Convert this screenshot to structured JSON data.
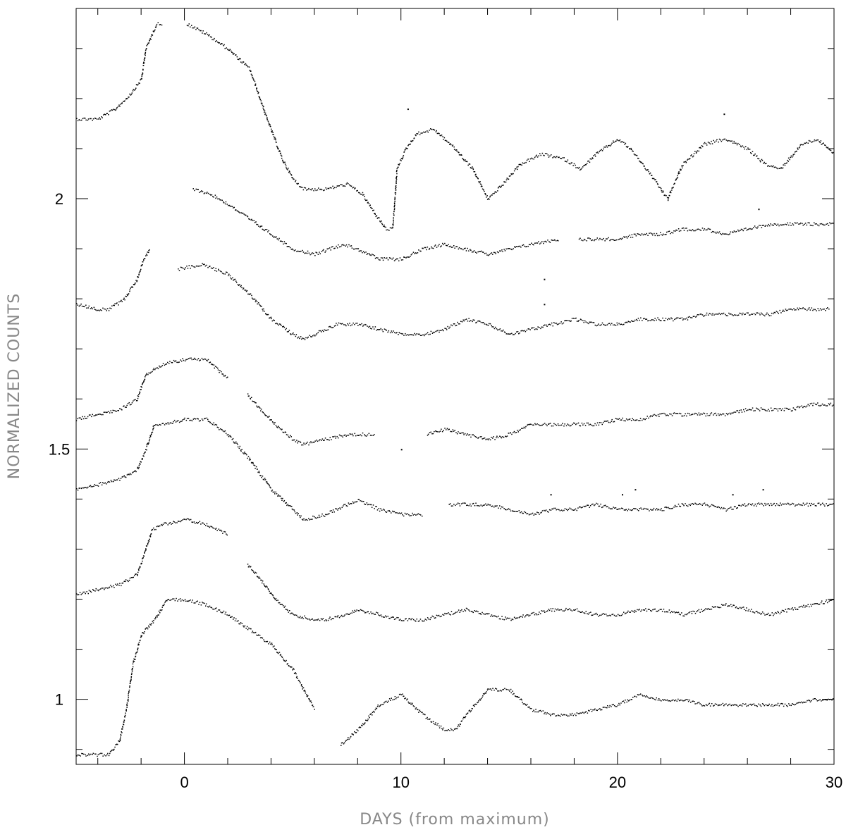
{
  "chart_data": {
    "type": "scatter",
    "title": "",
    "xlabel": "DAYS (from maximum)",
    "ylabel": "NORMALIZED COUNTS",
    "xlim": [
      -5,
      30
    ],
    "ylim": [
      0.87,
      2.38
    ],
    "x_ticks": [
      0,
      10,
      20,
      30
    ],
    "x_tick_labels": [
      "0",
      "10",
      "20",
      "30"
    ],
    "y_ticks": [
      1,
      1.5,
      2
    ],
    "y_tick_labels": [
      "1",
      "1.5",
      "2"
    ],
    "grid": false,
    "legend": "none",
    "marker_color": "#000000",
    "series": [
      {
        "x": [
          -5,
          -4,
          -3.2,
          -2.5,
          -2,
          -1.8,
          -1.3,
          -1,
          null,
          0.1,
          1,
          2,
          3,
          3.8,
          4.5,
          5,
          5.5,
          6.5,
          7.5,
          8.2,
          8.8,
          9.3,
          9.6,
          9.8,
          10.2,
          10.7,
          11.5,
          12.5,
          13.3,
          14,
          14.7,
          15.5,
          16.5,
          17.5,
          18.3,
          19,
          20,
          20.6,
          21.5,
          22.3,
          23,
          24,
          25,
          26,
          26.8,
          27.5,
          28.5,
          29.2,
          30
        ],
        "y": [
          2.16,
          2.16,
          2.18,
          2.21,
          2.24,
          2.3,
          2.35,
          2.35,
          null,
          2.35,
          2.33,
          2.3,
          2.26,
          2.16,
          2.08,
          2.04,
          2.02,
          2.02,
          2.03,
          2.01,
          1.97,
          1.94,
          1.94,
          2.06,
          2.1,
          2.13,
          2.14,
          2.1,
          2.06,
          2.0,
          2.03,
          2.07,
          2.09,
          2.08,
          2.06,
          2.09,
          2.12,
          2.1,
          2.05,
          2.0,
          2.07,
          2.11,
          2.12,
          2.1,
          2.07,
          2.06,
          2.11,
          2.12,
          2.09
        ]
      },
      {
        "x": [
          0.4,
          1.2,
          2,
          3,
          4,
          5,
          6,
          7.3,
          8,
          9,
          10,
          11,
          12,
          13,
          14,
          15,
          16,
          17.3,
          null,
          18.2,
          19,
          20,
          21,
          22,
          23,
          24,
          25,
          26,
          27,
          28,
          29,
          30
        ],
        "y": [
          2.02,
          2.01,
          1.99,
          1.96,
          1.93,
          1.9,
          1.89,
          1.91,
          1.9,
          1.88,
          1.88,
          1.9,
          1.91,
          1.9,
          1.89,
          1.9,
          1.91,
          1.92,
          null,
          1.92,
          1.92,
          1.92,
          1.93,
          1.93,
          1.94,
          1.94,
          1.93,
          1.94,
          1.95,
          1.95,
          1.95,
          1.95
        ]
      },
      {
        "x": [
          -5,
          -4,
          -3.5,
          -2.8,
          -2.2,
          -1.9,
          -1.6,
          null,
          -0.3,
          0.8,
          2,
          3,
          4,
          5,
          5.5,
          7,
          8,
          9,
          10,
          11,
          12,
          13,
          14,
          15,
          16,
          17,
          18,
          19,
          20,
          21,
          22,
          23,
          24,
          25,
          26,
          27,
          28,
          29,
          29.8
        ],
        "y": [
          1.79,
          1.78,
          1.78,
          1.8,
          1.84,
          1.88,
          1.9,
          null,
          1.86,
          1.87,
          1.85,
          1.81,
          1.76,
          1.73,
          1.72,
          1.75,
          1.75,
          1.74,
          1.73,
          1.73,
          1.74,
          1.76,
          1.75,
          1.73,
          1.74,
          1.75,
          1.76,
          1.75,
          1.75,
          1.76,
          1.76,
          1.76,
          1.77,
          1.77,
          1.77,
          1.77,
          1.78,
          1.78,
          1.78
        ]
      },
      {
        "x": [
          -5,
          -4,
          -3,
          -2.2,
          -1.8,
          -1,
          0,
          1,
          1.5,
          2
        ],
        "y": [
          1.56,
          1.57,
          1.58,
          1.6,
          1.65,
          1.67,
          1.68,
          1.68,
          1.66,
          1.64
        ]
      },
      {
        "x": [
          2.9,
          3.5,
          4.2,
          5,
          5.5,
          6.5,
          7.5,
          8.5,
          8.8,
          null,
          11.2,
          12,
          13,
          14,
          15,
          16,
          17,
          18,
          19,
          20,
          21,
          22,
          23,
          24,
          25,
          26,
          27,
          28,
          29,
          30
        ],
        "y": [
          1.61,
          1.58,
          1.55,
          1.52,
          1.51,
          1.52,
          1.53,
          1.53,
          1.53,
          null,
          1.53,
          1.54,
          1.53,
          1.52,
          1.53,
          1.55,
          1.55,
          1.55,
          1.55,
          1.56,
          1.56,
          1.57,
          1.57,
          1.57,
          1.57,
          1.58,
          1.58,
          1.58,
          1.59,
          1.59
        ]
      },
      {
        "x": [
          -5,
          -4,
          -3,
          -2.2,
          -1.8,
          -1.4,
          -1,
          0,
          1,
          2,
          3,
          4,
          5,
          5.5,
          6.5,
          7.5,
          8,
          9,
          10,
          11
        ],
        "y": [
          1.42,
          1.43,
          1.44,
          1.46,
          1.5,
          1.55,
          1.55,
          1.56,
          1.56,
          1.53,
          1.48,
          1.42,
          1.38,
          1.36,
          1.37,
          1.39,
          1.4,
          1.38,
          1.37,
          1.37
        ]
      },
      {
        "x": [
          12.2,
          13,
          14,
          15,
          16,
          17,
          18,
          19,
          20,
          21,
          22,
          23,
          24,
          25,
          26,
          27,
          28,
          29,
          30
        ],
        "y": [
          1.39,
          1.39,
          1.39,
          1.38,
          1.37,
          1.38,
          1.38,
          1.39,
          1.38,
          1.38,
          1.38,
          1.39,
          1.39,
          1.38,
          1.39,
          1.39,
          1.39,
          1.39,
          1.39
        ]
      },
      {
        "x": [
          -5,
          -4,
          -3,
          -2.2,
          -1.8,
          -1.5,
          -1,
          0,
          1,
          2
        ],
        "y": [
          1.21,
          1.22,
          1.23,
          1.25,
          1.3,
          1.34,
          1.35,
          1.36,
          1.35,
          1.33
        ]
      },
      {
        "x": [
          2.9,
          3.5,
          4.2,
          5,
          6,
          6.5,
          7.5,
          8,
          9,
          10,
          11,
          12,
          13,
          14,
          15,
          16,
          17,
          18,
          19,
          20,
          21,
          22,
          23,
          24,
          25,
          26,
          27,
          28,
          29,
          30
        ],
        "y": [
          1.27,
          1.24,
          1.2,
          1.17,
          1.16,
          1.16,
          1.17,
          1.18,
          1.17,
          1.16,
          1.16,
          1.17,
          1.18,
          1.17,
          1.16,
          1.17,
          1.18,
          1.18,
          1.17,
          1.17,
          1.18,
          1.18,
          1.17,
          1.18,
          1.19,
          1.18,
          1.17,
          1.18,
          1.19,
          1.2
        ]
      },
      {
        "x": [
          -5,
          -4,
          -3.5,
          -3,
          -2.7,
          -2.4,
          -2,
          -1.4,
          -0.8,
          0,
          1,
          2,
          3,
          4,
          5,
          6,
          null,
          7.2,
          8,
          9,
          10,
          11,
          12,
          12.5,
          13,
          14,
          15,
          16,
          17,
          18,
          19,
          20,
          21,
          22,
          23,
          24,
          25,
          26,
          27,
          28,
          29,
          30
        ],
        "y": [
          0.89,
          0.89,
          0.89,
          0.92,
          0.98,
          1.07,
          1.13,
          1.16,
          1.2,
          1.2,
          1.19,
          1.17,
          1.14,
          1.11,
          1.06,
          0.98,
          null,
          0.91,
          0.94,
          0.99,
          1.01,
          0.97,
          0.94,
          0.94,
          0.97,
          1.02,
          1.02,
          0.98,
          0.97,
          0.97,
          0.98,
          0.99,
          1.01,
          1.0,
          1.0,
          0.99,
          0.99,
          0.99,
          0.99,
          0.99,
          1.0,
          1.0
        ]
      }
    ],
    "outliers": {
      "x": [
        10.3,
        24.9,
        16.6,
        16.6,
        10,
        20.2,
        20.8,
        16.9,
        25.3,
        26.7,
        26.5
      ],
      "y": [
        2.18,
        2.17,
        1.84,
        1.79,
        1.5,
        1.41,
        1.42,
        1.41,
        1.41,
        1.42,
        1.98
      ]
    }
  }
}
